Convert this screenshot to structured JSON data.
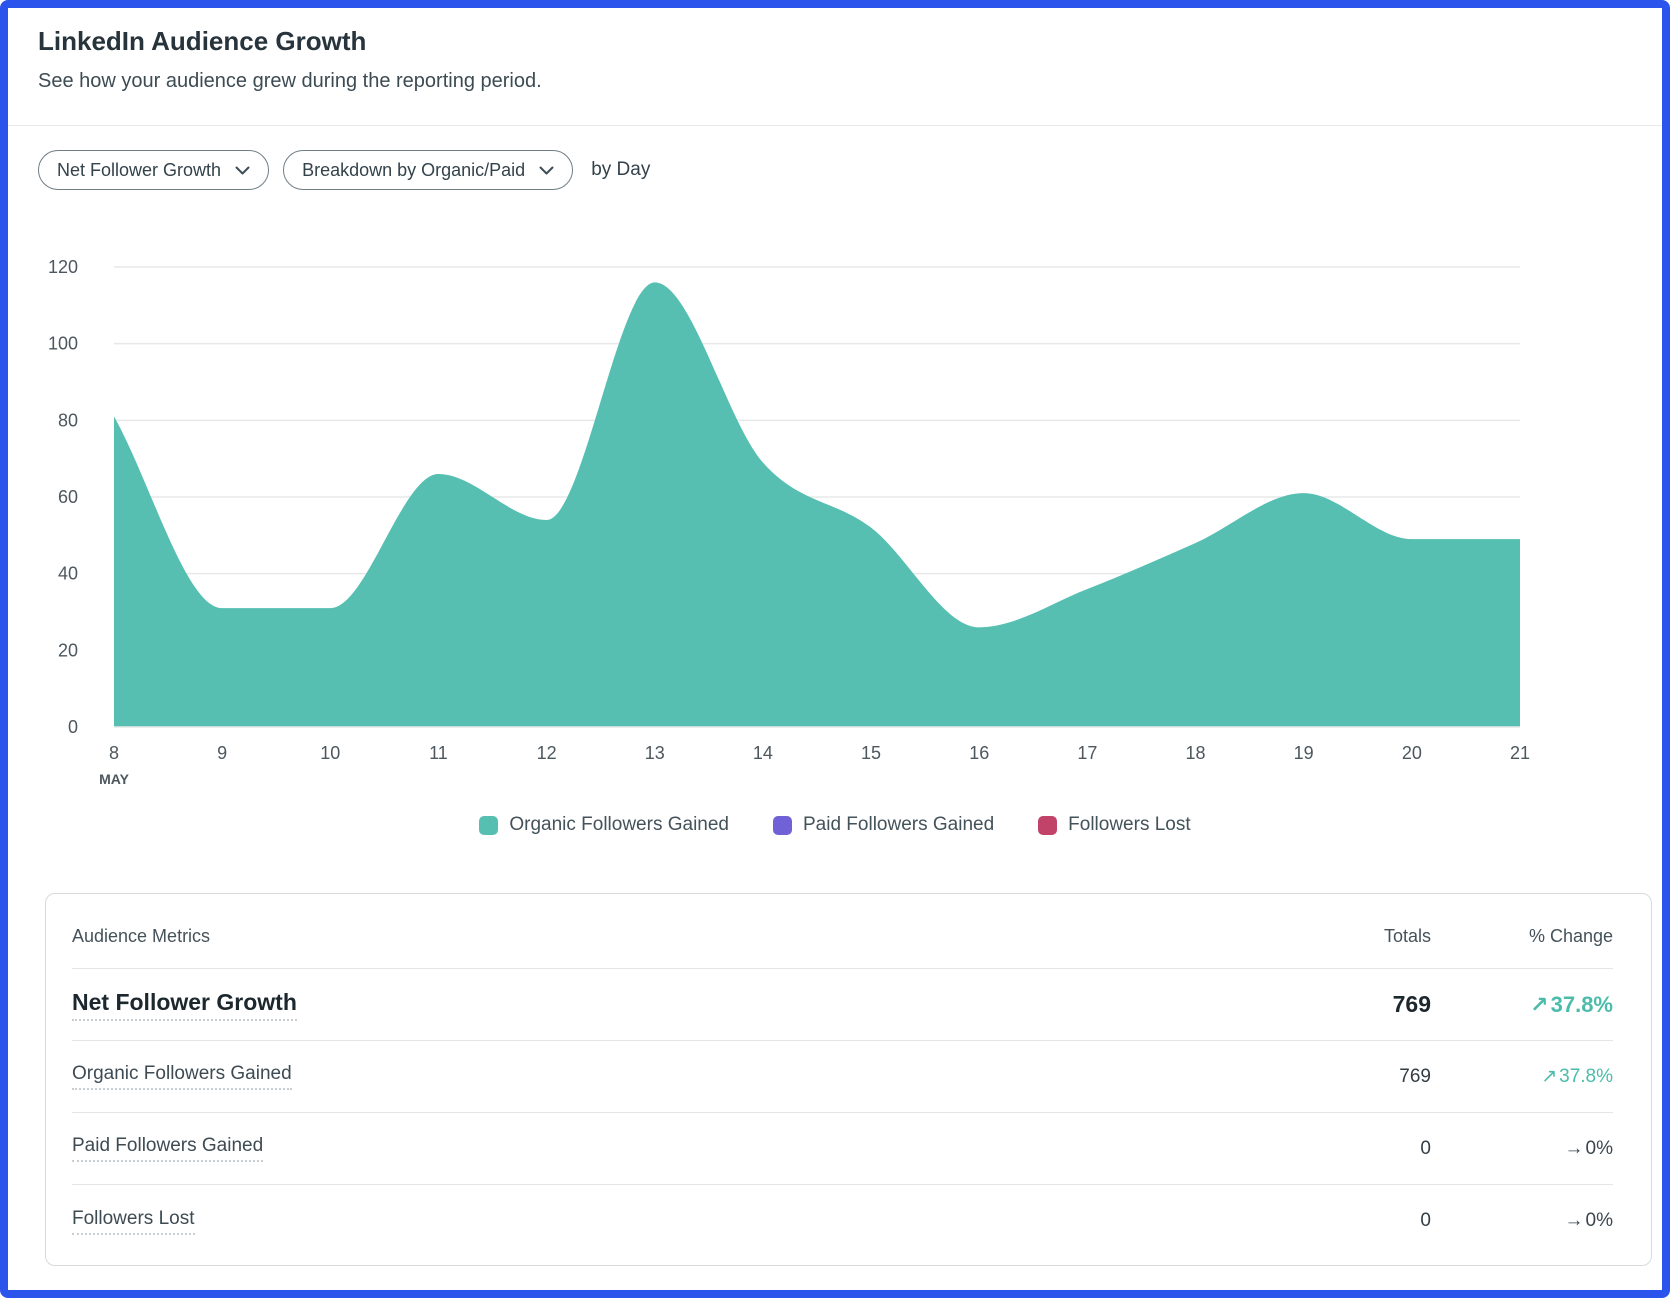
{
  "header": {
    "title": "LinkedIn Audience Growth",
    "subtitle": "See how your audience grew during the reporting period."
  },
  "controls": {
    "metric_dropdown_value": "Net Follower Growth",
    "breakdown_dropdown_value": "Breakdown by Organic/Paid",
    "granularity_label": "by Day"
  },
  "chart_data": {
    "type": "area",
    "title": "",
    "x_month_label": "MAY",
    "x": [
      8,
      9,
      10,
      11,
      12,
      13,
      14,
      15,
      16,
      17,
      18,
      19,
      20,
      21
    ],
    "series": [
      {
        "name": "Organic Followers Gained",
        "values": [
          81,
          31,
          31,
          66,
          54,
          116,
          69,
          52,
          26,
          36,
          48,
          61,
          49,
          49
        ],
        "color": "#56bfb1"
      },
      {
        "name": "Paid Followers Gained",
        "values": [
          0,
          0,
          0,
          0,
          0,
          0,
          0,
          0,
          0,
          0,
          0,
          0,
          0,
          0
        ],
        "color": "#7161d6"
      },
      {
        "name": "Followers Lost",
        "values": [
          0,
          0,
          0,
          0,
          0,
          0,
          0,
          0,
          0,
          0,
          0,
          0,
          0,
          0
        ],
        "color": "#c2436a"
      }
    ],
    "yticks": [
      0,
      20,
      40,
      60,
      80,
      100,
      120
    ],
    "ylim": [
      0,
      120
    ],
    "grid": true,
    "legend_position": "bottom",
    "axis_text_color": "#4c575e",
    "gridline_color": "#e7e8e9"
  },
  "legend": {
    "items": [
      {
        "label": "Organic Followers Gained",
        "color": "#56bfb1"
      },
      {
        "label": "Paid Followers Gained",
        "color": "#7161d6"
      },
      {
        "label": "Followers Lost",
        "color": "#c2436a"
      }
    ]
  },
  "table": {
    "headers": {
      "metric": "Audience Metrics",
      "totals": "Totals",
      "change": "% Change"
    },
    "rows": [
      {
        "label": "Net Follower Growth",
        "total": "769",
        "arrow": "↗",
        "change": "37.8%",
        "trend": "up",
        "change_color": "#4bbcab"
      },
      {
        "label": "Organic Followers Gained",
        "total": "769",
        "arrow": "↗",
        "change": "37.8%",
        "trend": "up",
        "change_color": "#4bbcab"
      },
      {
        "label": "Paid Followers Gained",
        "total": "0",
        "arrow": "→",
        "change": "0%",
        "trend": "flat",
        "change_color": "#3a454c"
      },
      {
        "label": "Followers Lost",
        "total": "0",
        "arrow": "→",
        "change": "0%",
        "trend": "flat",
        "change_color": "#3a454c"
      }
    ]
  },
  "colors": {
    "frame_border": "#2b54ec",
    "accent_teal": "#56bfb1",
    "accent_purple": "#7161d6",
    "accent_crimson": "#c2436a",
    "positive_change": "#4bbcab"
  }
}
